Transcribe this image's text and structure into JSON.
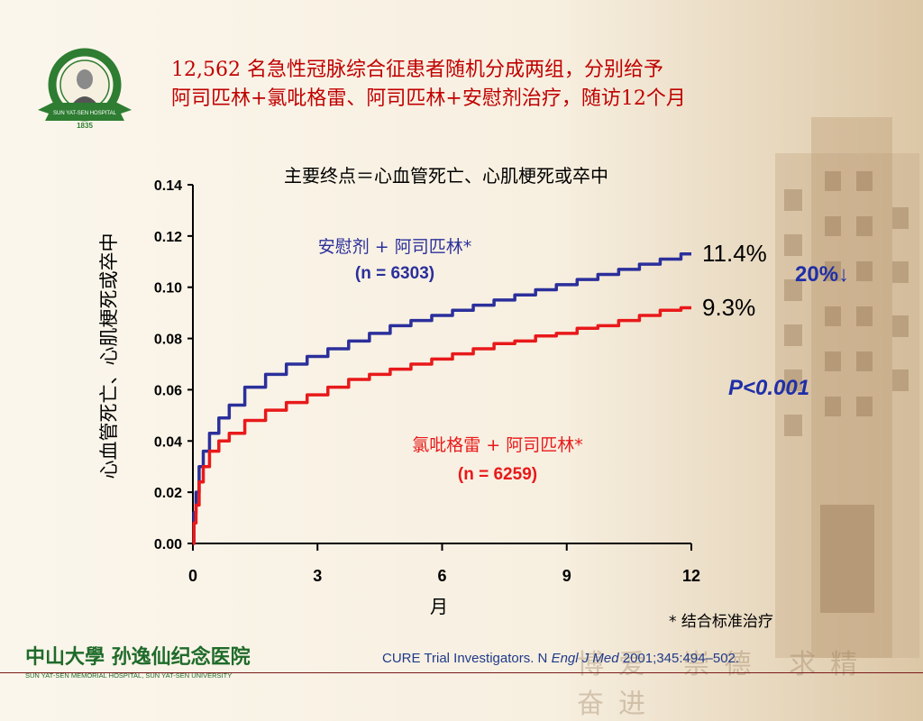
{
  "slide": {
    "title_line1": "12,562 名急性冠脉综合征患者随机分成两组，分别给予",
    "title_line2": "阿司匹林+氯吡格雷、阿司匹林+安慰剂治疗，随访12个月",
    "logo_ring_text": "中山大学孙逸仙纪念医院",
    "logo_banner_text": "SUN YAT-SEN MEMORIAL HOSPITAL SUN YAT-SEN UNIVERSITY",
    "logo_year": "1835",
    "footer_logo_text": "中山大學 孙逸仙纪念医院",
    "footer_logo_subtext": "SUN YAT-SEN MEMORIAL HOSPITAL, SUN YAT-SEN UNIVERSITY",
    "motto": "博爱 崇德 求精 奋进",
    "footnote": "* 结合标准治疗",
    "citation_prefix": "CURE Trial Investigators. N ",
    "citation_journal": "Engl J Med",
    "citation_suffix": " 2001;345:494–502."
  },
  "chart_data": {
    "type": "line",
    "title": "主要终点＝心血管死亡、心肌梗死或卒中",
    "xlabel": "月",
    "ylabel": "心血管死亡、心肌梗死或卒中",
    "xlim": [
      0,
      12
    ],
    "ylim": [
      0,
      0.14
    ],
    "x_ticks": [
      "0",
      "3",
      "6",
      "9",
      "12"
    ],
    "y_ticks": [
      "0.00",
      "0.02",
      "0.04",
      "0.06",
      "0.08",
      "0.10",
      "0.12",
      "0.14"
    ],
    "grid": false,
    "colors": {
      "placebo": "#2b2f9b",
      "clopidogrel": "#e8191a",
      "accent_blue": "#1f2fa8"
    },
    "series": [
      {
        "name": "安慰剂 + 阿司匹林*",
        "n_label": "(n = 6303)",
        "end_label": "11.4%",
        "x": [
          0,
          0.05,
          0.1,
          0.2,
          0.3,
          0.5,
          0.75,
          1,
          1.5,
          2,
          2.5,
          3,
          3.5,
          4,
          4.5,
          5,
          5.5,
          6,
          6.5,
          7,
          7.5,
          8,
          8.5,
          9,
          9.5,
          10,
          10.5,
          11,
          11.5,
          12
        ],
        "values": [
          0,
          0.012,
          0.02,
          0.03,
          0.036,
          0.043,
          0.049,
          0.054,
          0.061,
          0.066,
          0.07,
          0.073,
          0.076,
          0.079,
          0.082,
          0.085,
          0.087,
          0.089,
          0.091,
          0.093,
          0.095,
          0.097,
          0.099,
          0.101,
          0.103,
          0.105,
          0.107,
          0.109,
          0.111,
          0.113
        ]
      },
      {
        "name": "氯吡格雷 + 阿司匹林*",
        "n_label": "(n = 6259)",
        "end_label": "9.3%",
        "x": [
          0,
          0.05,
          0.1,
          0.2,
          0.3,
          0.5,
          0.75,
          1,
          1.5,
          2,
          2.5,
          3,
          3.5,
          4,
          4.5,
          5,
          5.5,
          6,
          6.5,
          7,
          7.5,
          8,
          8.5,
          9,
          9.5,
          10,
          10.5,
          11,
          11.5,
          12
        ],
        "values": [
          0,
          0.008,
          0.015,
          0.024,
          0.03,
          0.036,
          0.04,
          0.043,
          0.048,
          0.052,
          0.055,
          0.058,
          0.061,
          0.064,
          0.066,
          0.068,
          0.07,
          0.072,
          0.074,
          0.076,
          0.078,
          0.079,
          0.081,
          0.082,
          0.084,
          0.085,
          0.087,
          0.089,
          0.091,
          0.092
        ]
      }
    ],
    "annotations": {
      "reduction": "20%↓",
      "p_value": "P<0.001"
    }
  }
}
